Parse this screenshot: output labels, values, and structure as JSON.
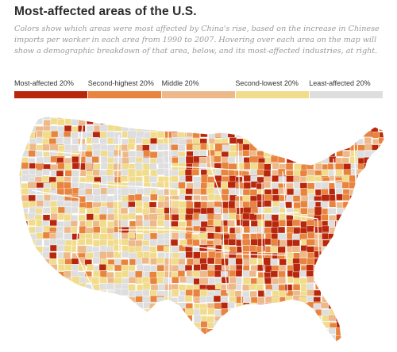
{
  "title": "Most-affected areas of the U.S.",
  "description": "Colors show which areas were most affected by China's rise, based on the increase in Chinese imports per worker in each area from 1990 to 2007. Hovering over each area on the map will show a demographic breakdown of that area, below, and its most-affected industries, at right.",
  "legend": {
    "items": [
      {
        "label": "Most-affected 20%",
        "color": "#b8270c"
      },
      {
        "label": "Second-highest 20%",
        "color": "#e8843e"
      },
      {
        "label": "Middle 20%",
        "color": "#eeb98a"
      },
      {
        "label": "Second-lowest 20%",
        "color": "#f1dc8c"
      },
      {
        "label": "Least-affected 20%",
        "color": "#dedede"
      }
    ]
  },
  "map": {
    "type": "choropleth",
    "region": "contiguous United States",
    "unit": "commuting zones",
    "colors": {
      "state_border": "#ffffff",
      "cell_border": "#ffffff"
    }
  }
}
